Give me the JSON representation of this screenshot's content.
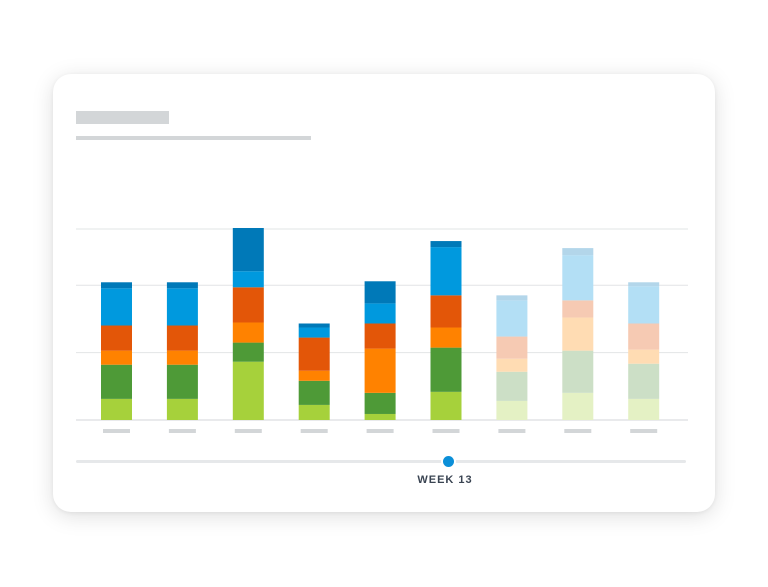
{
  "timeline": {
    "label": "WEEK 13",
    "progress": 0.61
  },
  "colors": {
    "segments": [
      "#a6d13b",
      "#4e9a37",
      "#ff8200",
      "#e35608",
      "#0099de",
      "#0079b8"
    ],
    "segments_faded": [
      "#e4f1c4",
      "#ccdfc6",
      "#ffdcb3",
      "#f6cab3",
      "#b3dff5",
      "#b3d6ea"
    ],
    "grid": "#e2e4e6",
    "placeholder": "#d3d6d8",
    "accent": "#0b8fd8"
  },
  "chart_data": {
    "type": "bar",
    "stacked": true,
    "grid": true,
    "ylim": [
      0,
      190
    ],
    "gridlines": [
      0,
      67,
      134,
      190
    ],
    "bars": [
      {
        "segments": [
          21,
          34,
          14,
          25,
          37,
          6
        ],
        "faded": false
      },
      {
        "segments": [
          21,
          34,
          14,
          25,
          37,
          6
        ],
        "faded": false
      },
      {
        "segments": [
          58,
          19,
          20,
          35,
          16,
          43
        ],
        "faded": false
      },
      {
        "segments": [
          15,
          24,
          10,
          33,
          10,
          4
        ],
        "faded": false
      },
      {
        "segments": [
          6,
          21,
          44,
          25,
          20,
          22
        ],
        "faded": false
      },
      {
        "segments": [
          28,
          44,
          20,
          32,
          48,
          6
        ],
        "faded": false
      },
      {
        "segments": [
          19,
          29,
          13,
          22,
          36,
          5
        ],
        "faded": true
      },
      {
        "segments": [
          27,
          42,
          33,
          17,
          45,
          7
        ],
        "faded": true
      },
      {
        "segments": [
          21,
          35,
          14,
          26,
          37,
          4
        ],
        "faded": true
      }
    ]
  }
}
